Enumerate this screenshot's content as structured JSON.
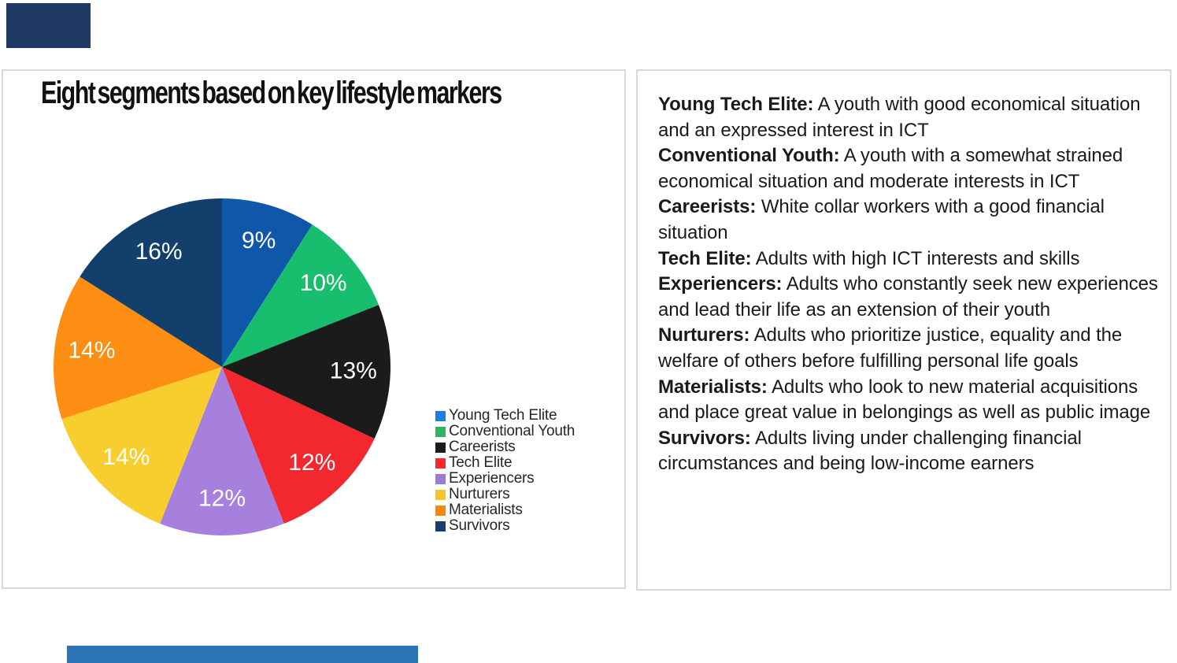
{
  "chart_data": {
    "type": "pie",
    "title": "Eight segments based on key lifestyle markers",
    "labels": [
      "Young Tech Elite",
      "Conventional Youth",
      "Careerists",
      "Tech Elite",
      "Experiencers",
      "Nurturers",
      "Materialists",
      "Survivors"
    ],
    "values": [
      9,
      10,
      13,
      12,
      12,
      14,
      14,
      16
    ],
    "unit": "%",
    "data_labels": [
      "9%",
      "10%",
      "13%",
      "12%",
      "12%",
      "14%",
      "14%",
      "16%"
    ],
    "colors": [
      "#0F57A8",
      "#17BE6E",
      "#1B1B1B",
      "#F3282E",
      "#A780DD",
      "#F7CE2E",
      "#FB8E13",
      "#123F6B"
    ],
    "legend_colors": [
      "#1E7CE8",
      "#2BB565",
      "#1B1B1B",
      "#F8282C",
      "#A078D6",
      "#F4C62B",
      "#F8870C",
      "#17406B"
    ],
    "start_angle": "top",
    "direction": "clockwise",
    "legend_position": "right",
    "label_color": "#FFFFFF"
  },
  "descriptions": [
    {
      "term": "Young Tech Elite:",
      "text": "A youth with good economical situation and an expressed interest in ICT"
    },
    {
      "term": "Conventional Youth:",
      "text": "A youth with a somewhat strained economical situation and moderate interests in ICT"
    },
    {
      "term": "Careerists:",
      "text": "White collar workers with a good financial situation"
    },
    {
      "term": "Tech Elite:",
      "text": "Adults with high ICT interests and skills"
    },
    {
      "term": "Experiencers:",
      "text": "Adults who constantly seek new experiences and lead their life as an extension of their youth"
    },
    {
      "term": "Nurturers:",
      "text": "Adults who prioritize justice, equality and the welfare of others before fulfilling personal life goals"
    },
    {
      "term": "Materialists:",
      "text": "Adults who look to new material acquisitions and place great value in belongings as well as public image"
    },
    {
      "term": "Survivors:",
      "text": "Adults living under challenging financial circumstances and being low-income earners"
    }
  ],
  "decor": {
    "top_left_rect_color": "#1F3864",
    "bottom_bar_color": "#2E75B6"
  }
}
